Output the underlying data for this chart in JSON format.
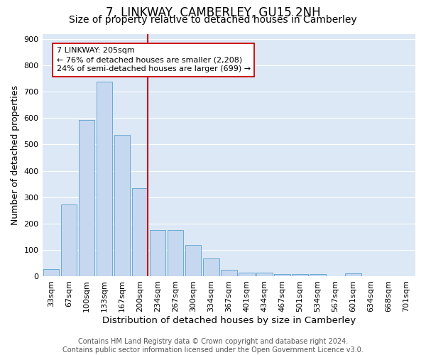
{
  "title": "7, LINKWAY, CAMBERLEY, GU15 2NH",
  "subtitle": "Size of property relative to detached houses in Camberley",
  "xlabel": "Distribution of detached houses by size in Camberley",
  "ylabel": "Number of detached properties",
  "categories": [
    "33sqm",
    "67sqm",
    "100sqm",
    "133sqm",
    "167sqm",
    "200sqm",
    "234sqm",
    "267sqm",
    "300sqm",
    "334sqm",
    "367sqm",
    "401sqm",
    "434sqm",
    "467sqm",
    "501sqm",
    "534sqm",
    "567sqm",
    "601sqm",
    "634sqm",
    "668sqm",
    "701sqm"
  ],
  "bar_values": [
    27,
    272,
    592,
    738,
    537,
    335,
    175,
    175,
    120,
    68,
    25,
    15,
    13,
    9,
    9,
    9,
    0,
    10,
    0,
    0,
    0
  ],
  "bar_color": "#c5d8f0",
  "bar_edge_color": "#6aaad4",
  "vline_color": "#cc0000",
  "annotation_text": "7 LINKWAY: 205sqm\n← 76% of detached houses are smaller (2,208)\n24% of semi-detached houses are larger (699) →",
  "annotation_box_color": "#ffffff",
  "annotation_box_edge": "#cc0000",
  "ylim": [
    0,
    920
  ],
  "yticks": [
    0,
    100,
    200,
    300,
    400,
    500,
    600,
    700,
    800,
    900
  ],
  "background_color": "#ffffff",
  "plot_bg_color": "#dce8f5",
  "grid_color": "#ffffff",
  "footer_text": "Contains HM Land Registry data © Crown copyright and database right 2024.\nContains public sector information licensed under the Open Government Licence v3.0.",
  "title_fontsize": 12,
  "subtitle_fontsize": 10,
  "xlabel_fontsize": 9.5,
  "ylabel_fontsize": 9,
  "tick_fontsize": 8,
  "footer_fontsize": 7
}
